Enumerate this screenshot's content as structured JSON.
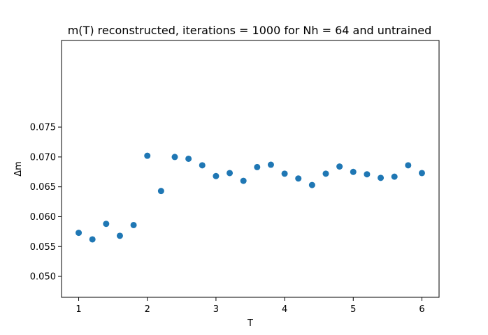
{
  "chart_data": {
    "type": "scatter",
    "title": "m(T) reconstructed, iterations = 1000 for Nh = 64 and untrained",
    "xlabel": "T",
    "ylabel": "Δm",
    "xlim": [
      0.75,
      6.25
    ],
    "ylim": [
      0.0465,
      0.0895
    ],
    "xticks": [
      1,
      2,
      3,
      4,
      5,
      6
    ],
    "xtick_labels": [
      "1",
      "2",
      "3",
      "4",
      "5",
      "6"
    ],
    "yticks": [
      0.05,
      0.055,
      0.06,
      0.065,
      0.07,
      0.075
    ],
    "ytick_labels": [
      "0.050",
      "0.055",
      "0.060",
      "0.065",
      "0.070",
      "0.075"
    ],
    "grid": false,
    "marker_color": "#1f77b4",
    "x": [
      1.0,
      1.2,
      1.4,
      1.6,
      1.8,
      2.0,
      2.2,
      2.4,
      2.6,
      2.8,
      3.0,
      3.2,
      3.4,
      3.6,
      3.8,
      4.0,
      4.2,
      4.4,
      4.6,
      4.8,
      5.0,
      5.2,
      5.4,
      5.6,
      5.8,
      6.0
    ],
    "y": [
      0.0573,
      0.0562,
      0.0588,
      0.0568,
      0.0586,
      0.0702,
      0.0643,
      0.07,
      0.0697,
      0.0686,
      0.0668,
      0.0673,
      0.066,
      0.0683,
      0.0687,
      0.0672,
      0.0664,
      0.0653,
      0.0672,
      0.0684,
      0.0675,
      0.0671,
      0.0665,
      0.0667,
      0.0686,
      0.0673
    ]
  }
}
